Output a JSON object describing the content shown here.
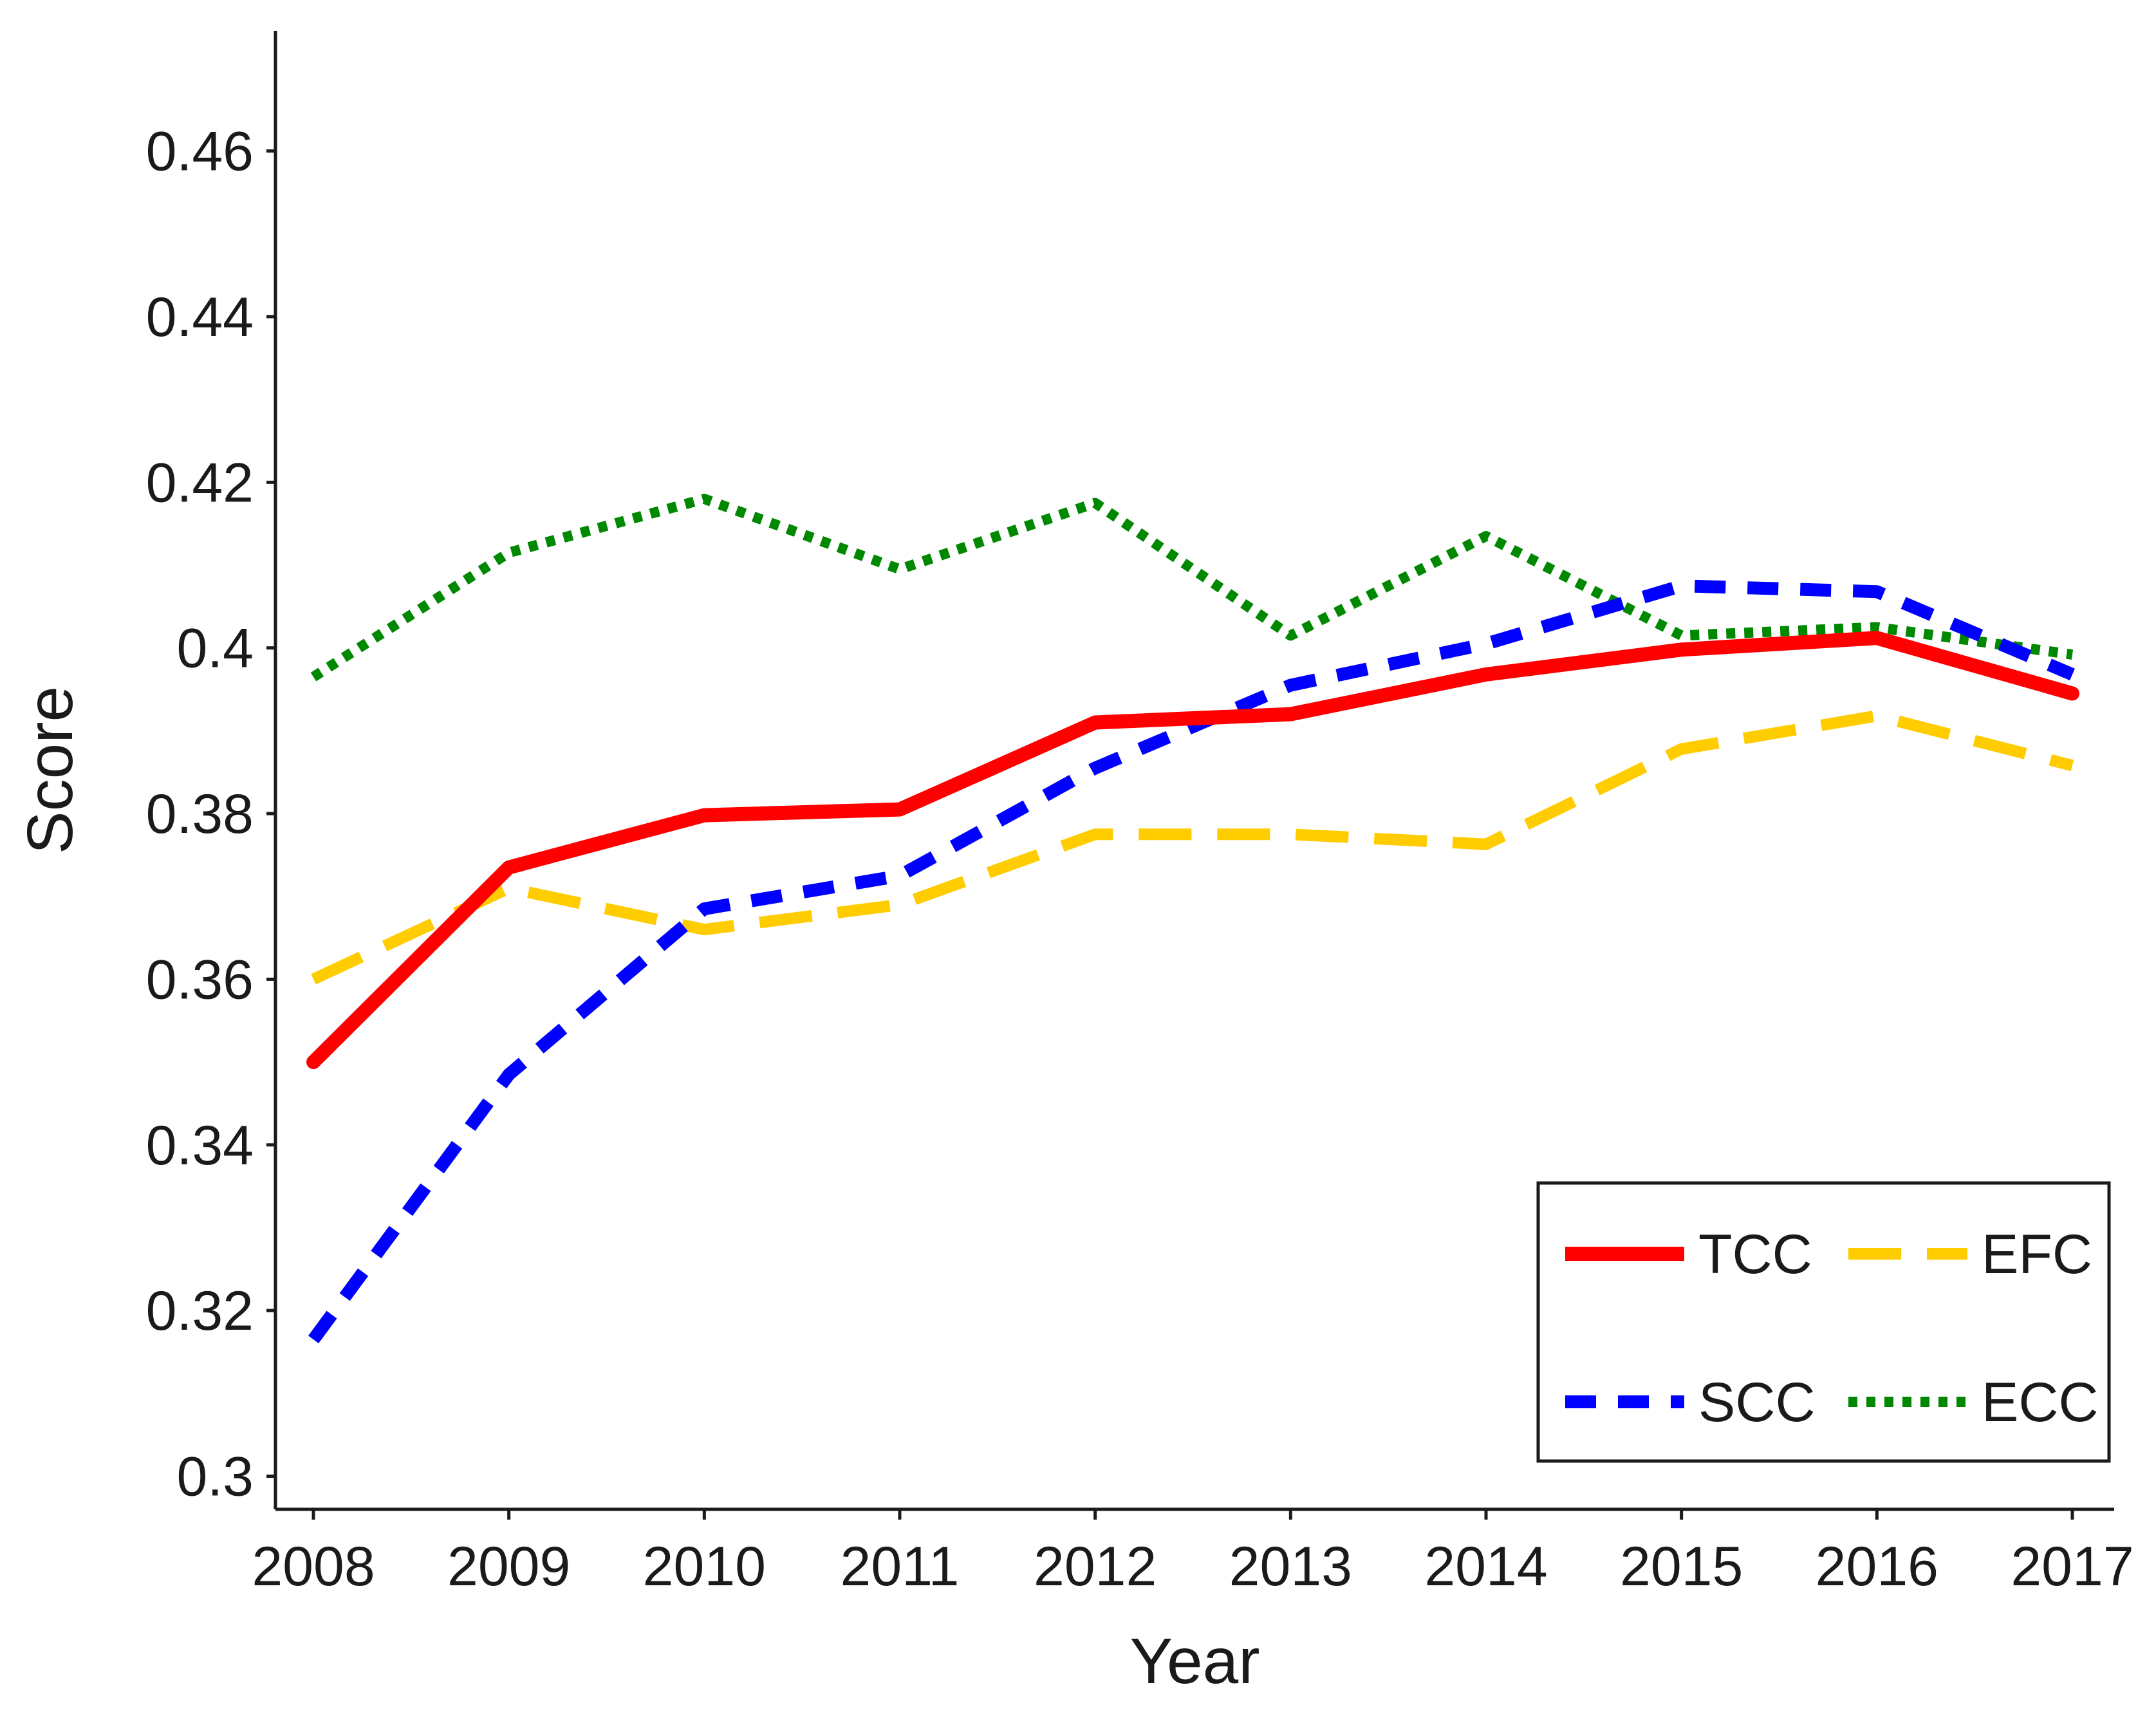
{
  "chart_data": {
    "type": "line",
    "title": "",
    "xlabel": "Year",
    "ylabel": "Score",
    "categories": [
      "2008",
      "2009",
      "2010",
      "2011",
      "2012",
      "2013",
      "2014",
      "2015",
      "2016",
      "2017"
    ],
    "yticks": [
      "0.3",
      "0.32",
      "0.34",
      "0.36",
      "0.38",
      "0.4",
      "0.42",
      "0.44",
      "0.46"
    ],
    "ytick_values": [
      0.3,
      0.32,
      0.34,
      0.36,
      0.38,
      0.4,
      0.42,
      0.44,
      0.46
    ],
    "ylim": [
      0.296,
      0.4745
    ],
    "grid": false,
    "legend_position": "bottom-right",
    "series": [
      {
        "name": "TCC",
        "color": "#ff0000",
        "style": "solid",
        "values": [
          0.35,
          0.3735,
          0.3798,
          0.3805,
          0.391,
          0.392,
          0.3968,
          0.3998,
          0.4012,
          0.3945
        ]
      },
      {
        "name": "EFC",
        "color": "#ffcc00",
        "style": "longdash",
        "values": [
          0.36,
          0.371,
          0.366,
          0.369,
          0.3775,
          0.3775,
          0.3763,
          0.3878,
          0.3918,
          0.3858
        ]
      },
      {
        "name": "SCC",
        "color": "#0000ff",
        "style": "dashed",
        "values": [
          0.3165,
          0.3485,
          0.3685,
          0.3725,
          0.3855,
          0.3955,
          0.4005,
          0.4075,
          0.4068,
          0.3968
        ]
      },
      {
        "name": "ECC",
        "color": "#008800",
        "style": "dotted",
        "values": [
          0.3965,
          0.4115,
          0.418,
          0.4095,
          0.4175,
          0.4015,
          0.4135,
          0.4015,
          0.4025,
          0.3992
        ]
      }
    ]
  }
}
